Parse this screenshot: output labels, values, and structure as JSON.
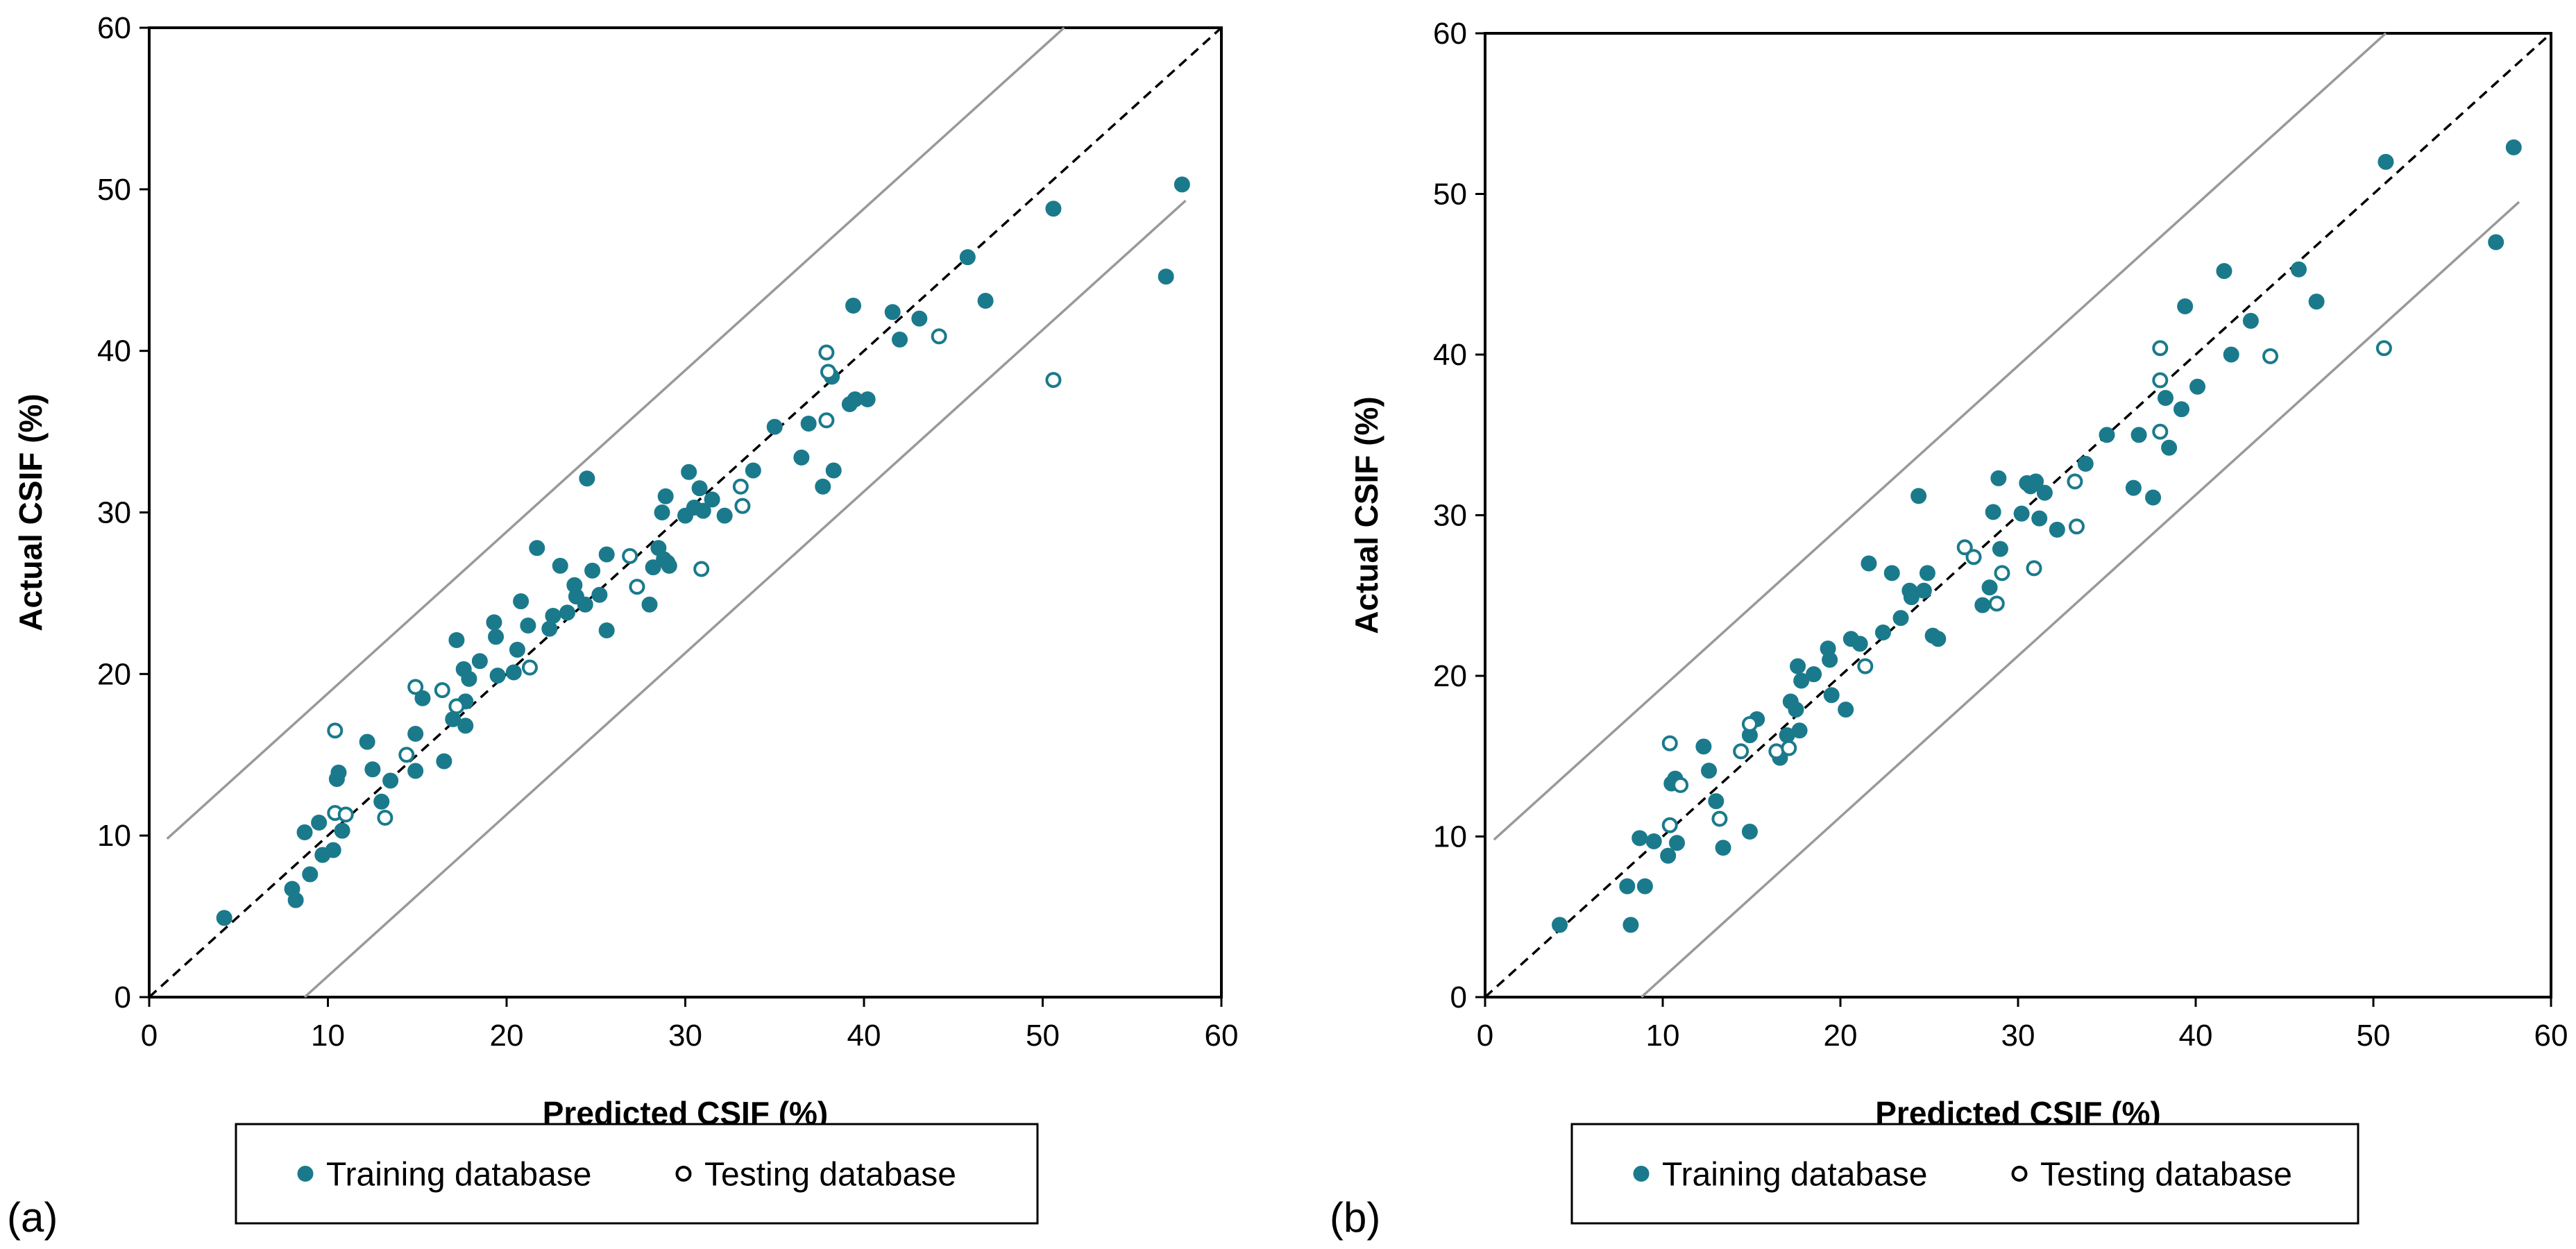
{
  "colors": {
    "training": "#1a7a8c",
    "testing_stroke": "#1a7a8c",
    "testing_fill": "#ffffff",
    "bound_line": "#999999",
    "identity_line": "#000000",
    "axis": "#000000"
  },
  "legend": {
    "training_label": "Training database",
    "testing_label": "Testing database"
  },
  "chart_data": [
    {
      "type": "scatter",
      "panel_label": "(a)",
      "xlabel": "Predicted CSIF (%)",
      "ylabel": "Actual CSIF (%)",
      "xlim": [
        0,
        60
      ],
      "ylim": [
        0,
        60
      ],
      "xticks": [
        0,
        10,
        20,
        30,
        40,
        50,
        60
      ],
      "yticks": [
        0,
        10,
        20,
        30,
        40,
        50,
        60
      ],
      "reference_lines": [
        {
          "name": "identity",
          "style": "dashed",
          "x": [
            0,
            60
          ],
          "y": [
            0,
            60
          ]
        },
        {
          "name": "upper-bound",
          "style": "solid",
          "x": [
            1,
            51.2
          ],
          "y": [
            9.8,
            60
          ]
        },
        {
          "name": "lower-bound",
          "style": "solid",
          "x": [
            8.7,
            58
          ],
          "y": [
            0,
            49.3
          ]
        }
      ],
      "series": [
        {
          "name": "Training database",
          "marker": "filled",
          "points": [
            [
              4.2,
              4.9
            ],
            [
              8,
              6.7
            ],
            [
              8.2,
              6
            ],
            [
              8.7,
              10.2
            ],
            [
              9,
              7.6
            ],
            [
              9.5,
              10.8
            ],
            [
              9.7,
              8.8
            ],
            [
              10.3,
              9.1
            ],
            [
              10.5,
              13.5
            ],
            [
              10.6,
              13.9
            ],
            [
              10.8,
              10.3
            ],
            [
              12.2,
              15.8
            ],
            [
              12.5,
              14.1
            ],
            [
              13,
              12.1
            ],
            [
              13.5,
              13.4
            ],
            [
              14.9,
              14
            ],
            [
              14.9,
              16.3
            ],
            [
              15.3,
              18.5
            ],
            [
              16.5,
              14.6
            ],
            [
              17,
              17.2
            ],
            [
              17.2,
              22.1
            ],
            [
              17.6,
              20.3
            ],
            [
              17.7,
              16.8
            ],
            [
              17.7,
              18.3
            ],
            [
              17.9,
              19.7
            ],
            [
              18.5,
              20.8
            ],
            [
              19.3,
              23.2
            ],
            [
              19.4,
              22.3
            ],
            [
              19.5,
              19.9
            ],
            [
              20.4,
              20.1
            ],
            [
              20.6,
              21.5
            ],
            [
              20.8,
              24.5
            ],
            [
              21.2,
              23
            ],
            [
              21.7,
              27.8
            ],
            [
              22.4,
              22.8
            ],
            [
              22.6,
              23.6
            ],
            [
              23,
              26.7
            ],
            [
              23.4,
              23.8
            ],
            [
              23.8,
              25.5
            ],
            [
              23.9,
              24.8
            ],
            [
              24.4,
              24.3
            ],
            [
              24.5,
              32.1
            ],
            [
              24.8,
              26.4
            ],
            [
              25.2,
              24.9
            ],
            [
              25.6,
              22.7
            ],
            [
              25.6,
              27.4
            ],
            [
              28,
              24.3
            ],
            [
              28.2,
              26.6
            ],
            [
              28.5,
              27.8
            ],
            [
              28.7,
              30
            ],
            [
              28.8,
              27.1
            ],
            [
              28.9,
              31
            ],
            [
              29,
              26.9
            ],
            [
              29.1,
              26.7
            ],
            [
              30,
              29.8
            ],
            [
              30.2,
              32.5
            ],
            [
              30.5,
              30.3
            ],
            [
              30.8,
              31.5
            ],
            [
              31,
              30.1
            ],
            [
              31.5,
              30.8
            ],
            [
              32.2,
              29.8
            ],
            [
              33.8,
              32.6
            ],
            [
              35,
              35.3
            ],
            [
              36.5,
              33.4
            ],
            [
              36.9,
              35.5
            ],
            [
              37.7,
              31.6
            ],
            [
              38.2,
              38.4
            ],
            [
              38.3,
              32.6
            ],
            [
              39.2,
              36.7
            ],
            [
              39.4,
              42.8
            ],
            [
              39.5,
              37
            ],
            [
              40.2,
              37
            ],
            [
              41.6,
              42.4
            ],
            [
              42,
              40.7
            ],
            [
              43.1,
              42
            ],
            [
              45.8,
              45.8
            ],
            [
              46.8,
              43.1
            ],
            [
              50.6,
              48.8
            ],
            [
              56.9,
              44.6
            ],
            [
              57.8,
              50.3
            ]
          ]
        },
        {
          "name": "Testing database",
          "marker": "hollow",
          "points": [
            [
              10.4,
              16.5
            ],
            [
              10.4,
              11.4
            ],
            [
              11,
              11.3
            ],
            [
              13.2,
              11.1
            ],
            [
              14.4,
              15
            ],
            [
              14.9,
              19.2
            ],
            [
              16.4,
              19
            ],
            [
              17.2,
              18
            ],
            [
              21.3,
              20.4
            ],
            [
              26.9,
              27.3
            ],
            [
              27.3,
              25.4
            ],
            [
              30.9,
              26.5
            ],
            [
              33.1,
              31.6
            ],
            [
              33.2,
              30.4
            ],
            [
              37.9,
              39.9
            ],
            [
              37.9,
              35.7
            ],
            [
              38,
              38.7
            ],
            [
              44.2,
              40.9
            ],
            [
              50.6,
              38.2
            ]
          ]
        }
      ]
    },
    {
      "type": "scatter",
      "panel_label": "(b)",
      "xlabel": "Predicted CSIF (%)",
      "ylabel": "Actual CSIF (%)",
      "xlim": [
        0,
        60
      ],
      "ylim": [
        0,
        60
      ],
      "xticks": [
        0,
        10,
        20,
        30,
        40,
        50,
        60
      ],
      "yticks": [
        0,
        10,
        20,
        30,
        40,
        50,
        60
      ],
      "reference_lines": [
        {
          "name": "identity",
          "style": "dashed",
          "x": [
            0,
            60
          ],
          "y": [
            0,
            60
          ]
        },
        {
          "name": "upper-bound",
          "style": "solid",
          "x": [
            0.5,
            50.7
          ],
          "y": [
            9.8,
            60
          ]
        },
        {
          "name": "lower-bound",
          "style": "solid",
          "x": [
            8.8,
            58.2
          ],
          "y": [
            0,
            49.5
          ]
        }
      ],
      "series": [
        {
          "name": "Training database",
          "marker": "filled",
          "points": [
            [
              4.2,
              4.5
            ],
            [
              8,
              6.9
            ],
            [
              8.2,
              4.5
            ],
            [
              8.7,
              9.9
            ],
            [
              9,
              6.9
            ],
            [
              9.5,
              9.7
            ],
            [
              10.3,
              8.8
            ],
            [
              10.5,
              13.3
            ],
            [
              10.7,
              13.6
            ],
            [
              10.8,
              9.6
            ],
            [
              12.3,
              15.6
            ],
            [
              12.6,
              14.1
            ],
            [
              13,
              12.2
            ],
            [
              13.4,
              9.3
            ],
            [
              14.9,
              10.3
            ],
            [
              14.9,
              16.3
            ],
            [
              15.3,
              17.3
            ],
            [
              16.6,
              14.9
            ],
            [
              17,
              16.3
            ],
            [
              17.2,
              18.4
            ],
            [
              17.5,
              17.9
            ],
            [
              17.6,
              20.6
            ],
            [
              17.7,
              16.6
            ],
            [
              17.8,
              19.7
            ],
            [
              18.5,
              20.1
            ],
            [
              19.3,
              21.7
            ],
            [
              19.4,
              21
            ],
            [
              19.5,
              18.8
            ],
            [
              20.3,
              17.9
            ],
            [
              20.6,
              22.3
            ],
            [
              21.1,
              22
            ],
            [
              21.6,
              27
            ],
            [
              22.4,
              22.7
            ],
            [
              22.9,
              26.4
            ],
            [
              23.4,
              23.6
            ],
            [
              23.9,
              25.3
            ],
            [
              24,
              24.9
            ],
            [
              24.4,
              31.2
            ],
            [
              24.7,
              25.3
            ],
            [
              24.9,
              26.4
            ],
            [
              25.2,
              22.5
            ],
            [
              25.5,
              22.3
            ],
            [
              28,
              24.4
            ],
            [
              28.4,
              25.5
            ],
            [
              28.6,
              30.2
            ],
            [
              28.9,
              32.3
            ],
            [
              29,
              27.9
            ],
            [
              30.2,
              30.1
            ],
            [
              30.5,
              32
            ],
            [
              30.7,
              31.8
            ],
            [
              31,
              32.1
            ],
            [
              31.2,
              29.8
            ],
            [
              31.5,
              31.4
            ],
            [
              32.2,
              29.1
            ],
            [
              33.8,
              33.2
            ],
            [
              35,
              35
            ],
            [
              36.5,
              31.7
            ],
            [
              36.8,
              35
            ],
            [
              37.6,
              31.1
            ],
            [
              38.3,
              37.3
            ],
            [
              38.5,
              34.2
            ],
            [
              39.2,
              36.6
            ],
            [
              39.4,
              43
            ],
            [
              40.1,
              38
            ],
            [
              41.6,
              45.2
            ],
            [
              42,
              40
            ],
            [
              43.1,
              42.1
            ],
            [
              45.8,
              45.3
            ],
            [
              46.8,
              43.3
            ],
            [
              50.7,
              52
            ],
            [
              56.9,
              47
            ],
            [
              57.9,
              52.9
            ]
          ]
        },
        {
          "name": "Testing database",
          "marker": "hollow",
          "points": [
            [
              10.4,
              15.8
            ],
            [
              10.4,
              10.7
            ],
            [
              11,
              13.2
            ],
            [
              13.2,
              11.1
            ],
            [
              14.4,
              15.3
            ],
            [
              14.9,
              17
            ],
            [
              16.4,
              15.3
            ],
            [
              17.1,
              15.5
            ],
            [
              21.4,
              20.6
            ],
            [
              27,
              28
            ],
            [
              27.5,
              27.4
            ],
            [
              28.8,
              24.5
            ],
            [
              29.1,
              26.4
            ],
            [
              30.9,
              26.7
            ],
            [
              33.2,
              32.1
            ],
            [
              33.3,
              29.3
            ],
            [
              38,
              40.4
            ],
            [
              38,
              38.4
            ],
            [
              38,
              35.2
            ],
            [
              44.2,
              39.9
            ],
            [
              50.6,
              40.4
            ]
          ]
        }
      ]
    }
  ]
}
